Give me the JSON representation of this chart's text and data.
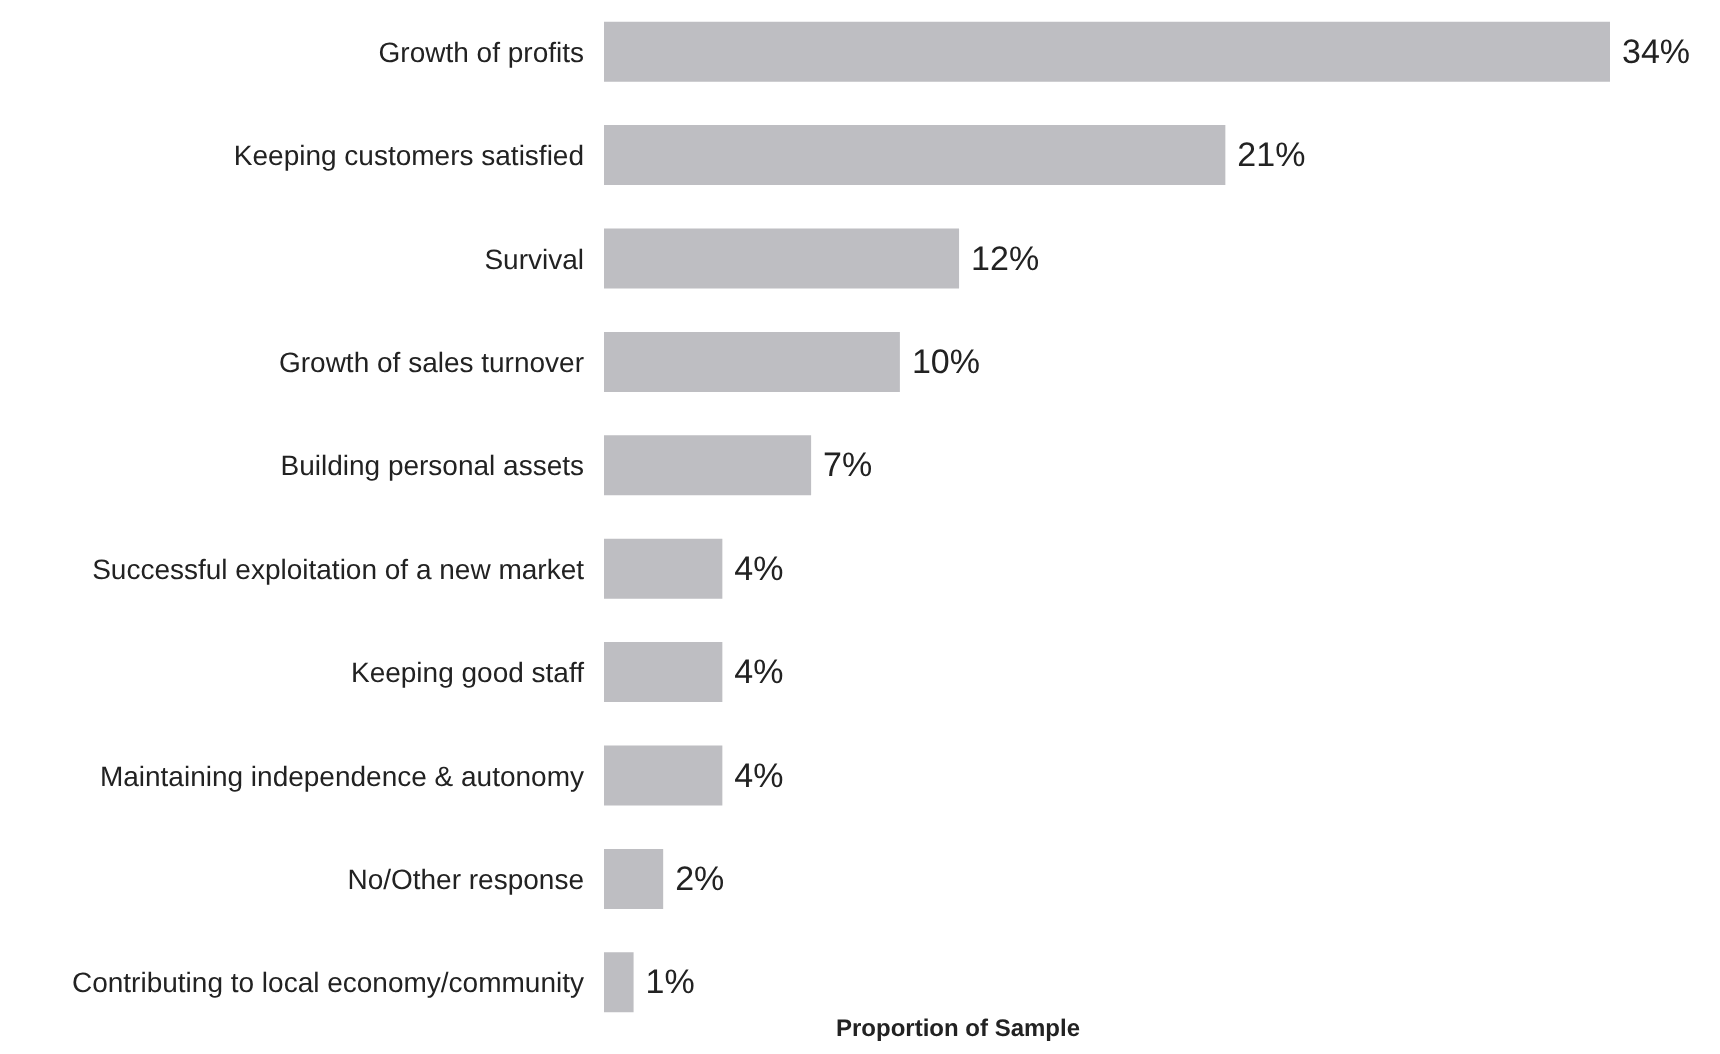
{
  "chart_data": {
    "type": "bar",
    "orientation": "horizontal",
    "xlabel": "Proportion of Sample",
    "categories": [
      "Growth of profits",
      "Keeping customers satisfied",
      "Survival",
      "Growth of sales turnover",
      "Building personal assets",
      "Successful exploitation of a new market",
      "Keeping good staff",
      "Maintaining independence & autonomy",
      "No/Other response",
      "Contributing to local economy/community"
    ],
    "values": [
      34,
      21,
      12,
      10,
      7,
      4,
      4,
      4,
      2,
      1
    ],
    "value_labels": [
      "34%",
      "21%",
      "12%",
      "10%",
      "7%",
      "4%",
      "4%",
      "4%",
      "2%",
      "1%"
    ],
    "color": "#bebec2",
    "xlim": [
      0,
      34
    ],
    "tick_labels": "y",
    "grid": false
  }
}
